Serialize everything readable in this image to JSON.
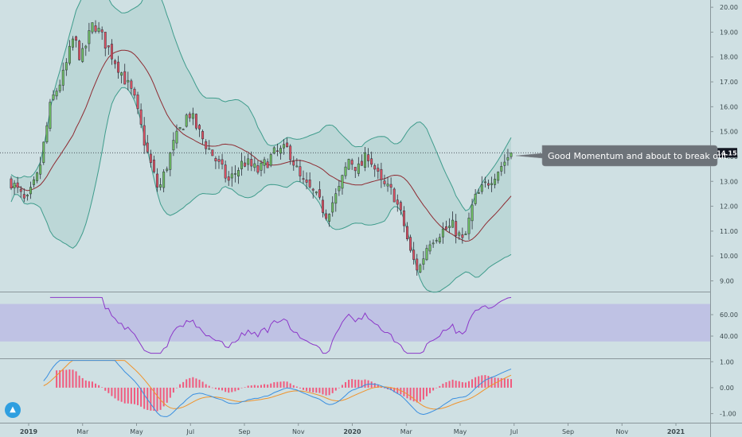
{
  "chart_data": [
    {
      "type": "candlestick",
      "price_ticks": [
        "20.00",
        "19.00",
        "18.00",
        "17.00",
        "16.00",
        "15.00",
        "14.00",
        "13.00",
        "12.00",
        "11.00",
        "10.00",
        "9.00"
      ],
      "ylim": [
        8.6,
        20.1
      ],
      "last_price": "14.15",
      "annotation": "Good Momentum and about to break out",
      "anchors": [
        {
          "t": 0,
          "close": 13.0
        },
        {
          "t": 0.03,
          "close": 12.1
        },
        {
          "t": 0.055,
          "close": 13.3
        },
        {
          "t": 0.08,
          "close": 16.2
        },
        {
          "t": 0.105,
          "close": 17.3
        },
        {
          "t": 0.125,
          "close": 18.8
        },
        {
          "t": 0.14,
          "close": 17.9
        },
        {
          "t": 0.165,
          "close": 19.4
        },
        {
          "t": 0.19,
          "close": 18.5
        },
        {
          "t": 0.215,
          "close": 17.6
        },
        {
          "t": 0.245,
          "close": 16.4
        },
        {
          "t": 0.27,
          "close": 14.3
        },
        {
          "t": 0.295,
          "close": 12.6
        },
        {
          "t": 0.325,
          "close": 14.5
        },
        {
          "t": 0.355,
          "close": 15.8
        },
        {
          "t": 0.38,
          "close": 14.8
        },
        {
          "t": 0.405,
          "close": 14.0
        },
        {
          "t": 0.435,
          "close": 13.0
        },
        {
          "t": 0.465,
          "close": 13.8
        },
        {
          "t": 0.495,
          "close": 13.4
        },
        {
          "t": 0.525,
          "close": 14.1
        },
        {
          "t": 0.555,
          "close": 14.3
        },
        {
          "t": 0.58,
          "close": 13.0
        },
        {
          "t": 0.605,
          "close": 12.5
        },
        {
          "t": 0.63,
          "close": 11.7
        },
        {
          "t": 0.655,
          "close": 12.6
        },
        {
          "t": 0.675,
          "close": 13.9
        },
        {
          "t": 0.695,
          "close": 13.5
        },
        {
          "t": 0.715,
          "close": 14.1
        },
        {
          "t": 0.74,
          "close": 12.9
        },
        {
          "t": 0.765,
          "close": 12.5
        },
        {
          "t": 0.785,
          "close": 11.3
        },
        {
          "t": 0.8,
          "close": 10.0
        },
        {
          "t": 0.815,
          "close": 9.4
        },
        {
          "t": 0.835,
          "close": 10.6
        },
        {
          "t": 0.86,
          "close": 11.0
        },
        {
          "t": 0.885,
          "close": 11.2
        },
        {
          "t": 0.905,
          "close": 10.5
        },
        {
          "t": 0.925,
          "close": 12.2
        },
        {
          "t": 0.95,
          "close": 12.9
        },
        {
          "t": 0.975,
          "close": 13.5
        },
        {
          "t": 1.0,
          "close": 14.15
        }
      ],
      "bollinger_period": 20,
      "ma_period": 20
    },
    {
      "type": "line",
      "indicator": "RSI",
      "ticks": [
        "60.00",
        "40.00"
      ],
      "ylim": [
        20,
        80
      ],
      "band": [
        35,
        70
      ]
    },
    {
      "type": "histogram+line",
      "indicator": "MACD",
      "ticks": [
        "1.00",
        "0.00",
        "-1.00"
      ],
      "ylim": [
        -1.35,
        1.1
      ]
    }
  ],
  "x_ticks": [
    "2019",
    "Mar",
    "May",
    "Jul",
    "Sep",
    "Nov",
    "2020",
    "Mar",
    "May",
    "Jul",
    "Sep",
    "Nov",
    "2021"
  ],
  "x_tick_bold": [
    "2019",
    "2020",
    "2021"
  ],
  "colors": {
    "background": "#cfe0e3",
    "up_candle": "#6fbf63",
    "down_candle": "#e05263",
    "wick": "#2a2e39",
    "bollinger": "#3f9c8c",
    "bollinger_fill": "rgba(63,156,140,0.13)",
    "ma": "#8e2b32",
    "rsi_line": "#8c38c9",
    "rsi_band": "rgba(150,120,230,0.28)",
    "macd_line": "#3a8fe0",
    "signal_line": "#f0932b",
    "histogram": "#f05a7e",
    "callout": "#6d7379",
    "price_tag": "#131722"
  },
  "icons": [
    "tradingview-logo-icon"
  ]
}
